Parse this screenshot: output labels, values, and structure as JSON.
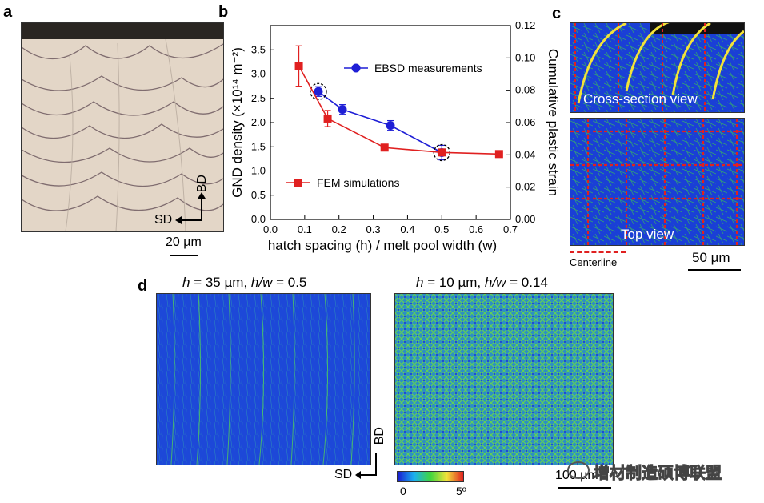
{
  "panel_a": {
    "label": "a",
    "bd_label": "BD",
    "sd_label": "SD",
    "scale_label": "20 µm"
  },
  "panel_b": {
    "label": "b",
    "legend_ebsd": "EBSD measurements",
    "legend_fem": "FEM simulations"
  },
  "panel_c": {
    "label": "c",
    "cross_section_label": "Cross-section view",
    "top_view_label": "Top view",
    "centerline_label": "Centerline",
    "scale_label": "50 µm"
  },
  "panel_d": {
    "label": "d",
    "title_left_h": "h",
    "title_left_rest1": " = 35 µm, ",
    "title_left_hw": "h/w",
    "title_left_rest2": " = 0.5",
    "title_right_h": "h",
    "title_right_rest1": " = 10 µm, ",
    "title_right_hw": "h/w",
    "title_right_rest2": " = 0.14",
    "bd_label": "BD",
    "sd_label": "SD",
    "colorbar_min": "0",
    "colorbar_max": "5º",
    "scale_label": "100 µm"
  },
  "watermark": "增材制造硕博联盟",
  "colors": {
    "ebsd": "#1f1fd6",
    "fem": "#e02020",
    "map_blue": "#1a3fd6",
    "map_green": "#3fd63f",
    "grain_yellow": "#f2e23a",
    "centerline_red": "#e02020"
  },
  "chart_data": {
    "type": "line",
    "xlabel": "hatch spacing (h) / melt pool width (w)",
    "ylabel": "GND density (×10¹⁴ m⁻²)",
    "y2label": "Cumulative plastic strain",
    "xlim": [
      0.0,
      0.7
    ],
    "ylim": [
      0.0,
      4.0
    ],
    "y2lim": [
      0.0,
      0.12
    ],
    "x_ticks": [
      "0.0",
      "0.1",
      "0.2",
      "0.3",
      "0.4",
      "0.5",
      "0.6",
      "0.7"
    ],
    "y_ticks": [
      "0.0",
      "0.5",
      "1.0",
      "1.5",
      "2.0",
      "2.5",
      "3.0",
      "3.5"
    ],
    "y2_ticks": [
      "0.00",
      "0.02",
      "0.04",
      "0.06",
      "0.08",
      "0.10",
      "0.12"
    ],
    "series": [
      {
        "name": "EBSD measurements",
        "axis": "left",
        "x": [
          0.14,
          0.21,
          0.35,
          0.5
        ],
        "y": [
          2.64,
          2.27,
          1.94,
          1.38
        ],
        "err": [
          0.1,
          0.1,
          0.1,
          0.15
        ],
        "marker": "circle",
        "circled": [
          0.14,
          0.5
        ]
      },
      {
        "name": "FEM simulations",
        "axis": "right",
        "x": [
          0.083,
          0.167,
          0.333,
          0.5,
          0.667
        ],
        "y": [
          0.095,
          0.0625,
          0.0445,
          0.0415,
          0.0405
        ],
        "err": [
          0.0125,
          0.005,
          0.002,
          0.002,
          0.002
        ],
        "marker": "square"
      }
    ],
    "legend": "inside"
  }
}
